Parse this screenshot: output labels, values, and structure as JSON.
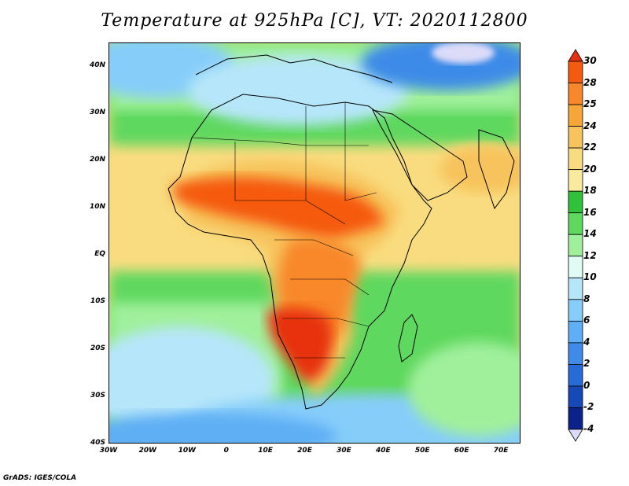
{
  "title": "Temperature at 925hPa [C], VT: 2020112800",
  "credit": "GrADS: IGES/COLA",
  "map": {
    "lon_range": [
      -30,
      75
    ],
    "lat_range": [
      -40,
      45
    ],
    "lat_labels": [
      "40N",
      "30N",
      "20N",
      "10N",
      "EQ",
      "10S",
      "20S",
      "30S",
      "40S"
    ],
    "lat_values": [
      40,
      30,
      20,
      10,
      0,
      -10,
      -20,
      -30,
      -40
    ],
    "lon_labels": [
      "30W",
      "20W",
      "10W",
      "0",
      "10E",
      "20E",
      "30E",
      "40E",
      "50E",
      "60E",
      "70E"
    ],
    "lon_values": [
      -30,
      -20,
      -10,
      0,
      10,
      20,
      30,
      40,
      50,
      60,
      70
    ]
  },
  "colorbar": {
    "labels": [
      "30",
      "28",
      "25",
      "24",
      "22",
      "20",
      "18",
      "16",
      "14",
      "12",
      "10",
      "8",
      "6",
      "4",
      "2",
      "0",
      "-2",
      "-4"
    ],
    "colors": [
      "#e7300f",
      "#f55a11",
      "#f8882a",
      "#f5a638",
      "#f7c35c",
      "#f9dc7f",
      "#f7ec9e",
      "#31c23b",
      "#5fd85f",
      "#a0f09b",
      "#e0fbf4",
      "#b6e6fa",
      "#86cdfa",
      "#5eaff5",
      "#3e8be8",
      "#276bd8",
      "#1749b6",
      "#0d218a",
      "#dcdcf8"
    ]
  }
}
